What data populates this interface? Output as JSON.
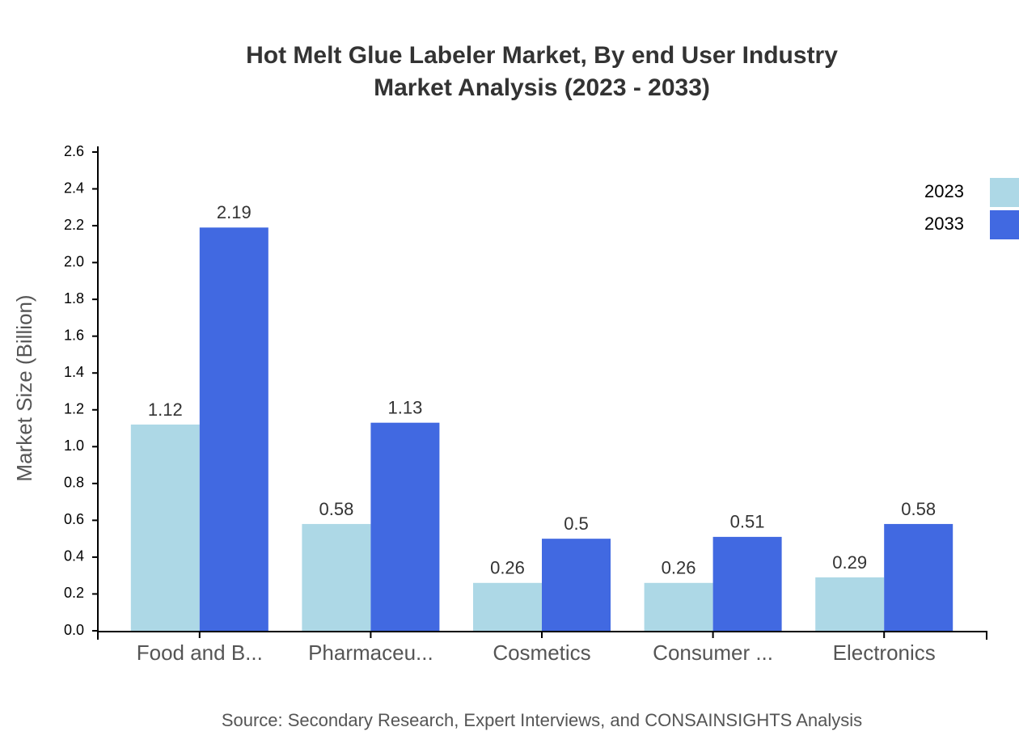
{
  "chart_data": {
    "type": "bar",
    "title": "Hot Melt Glue Labeler Market, By end User Industry",
    "subtitle": "Market Analysis (2023 - 2033)",
    "y_label": "Market Size (Billion)",
    "source": "Source: Secondary Research, Expert Interviews, and CONSAINSIGHTS Analysis",
    "categories": [
      "Food and B...",
      "Pharmaceu...",
      "Cosmetics",
      "Consumer ...",
      "Electronics"
    ],
    "series": [
      {
        "name": "2023",
        "color": "#add8e6",
        "values": [
          1.12,
          0.58,
          0.26,
          0.26,
          0.29
        ]
      },
      {
        "name": "2033",
        "color": "#4169e1",
        "values": [
          2.19,
          1.13,
          0.5,
          0.51,
          0.58
        ]
      }
    ],
    "ylim": [
      0,
      2.6
    ],
    "yticks": [
      {
        "value": 0,
        "label": "0.0"
      },
      0.2,
      0.4,
      0.6,
      0.8,
      {
        "value": 1,
        "label": "1.0"
      },
      1.2,
      1.4,
      1.6,
      1.8,
      {
        "value": 2,
        "label": "2.0"
      },
      2.2,
      2.4,
      2.6
    ],
    "legend": "top-right"
  }
}
